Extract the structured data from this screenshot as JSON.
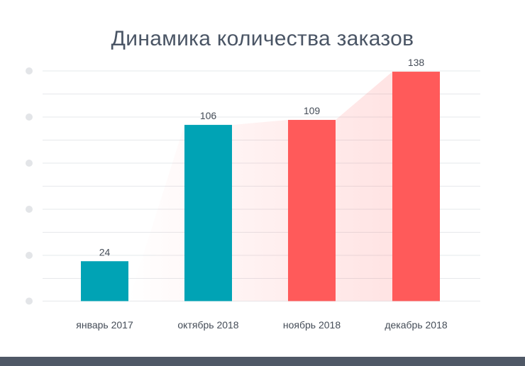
{
  "chart_data": {
    "type": "bar",
    "title": "Динамика количества заказов",
    "categories": [
      "январь 2017",
      "октябрь 2018",
      "ноябрь 2018",
      "декабрь 2018"
    ],
    "values": [
      24,
      106,
      109,
      138
    ],
    "bar_colors": [
      "#00a3b5",
      "#00a3b5",
      "#ff5a5a",
      "#ff5a5a"
    ],
    "area_color": "#ff6b6b",
    "ylim": [
      0,
      160
    ],
    "grid": true,
    "xlabel": "",
    "ylabel": ""
  },
  "colors": {
    "title": "#4a5565",
    "grid": "#e6e8eb",
    "axis_dot": "#e3e5e8",
    "footer": "#4f5866"
  }
}
